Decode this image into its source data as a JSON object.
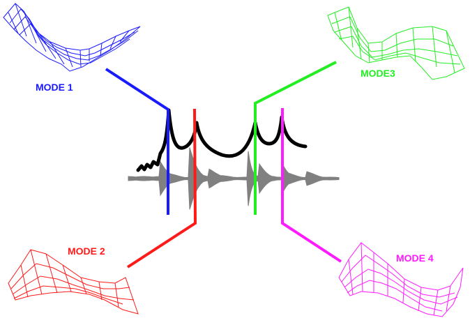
{
  "modes": [
    {
      "label": "MODE 1",
      "color": "#1a1aff"
    },
    {
      "label": "MODE 2",
      "color": "#ff1a1a"
    },
    {
      "label": "MODE3",
      "color": "#22ee22"
    },
    {
      "label": "MODE 4",
      "color": "#ff1aff"
    }
  ],
  "colors": {
    "frf_curve": "#000000",
    "waveform": "#808080",
    "background": "#ffffff"
  }
}
